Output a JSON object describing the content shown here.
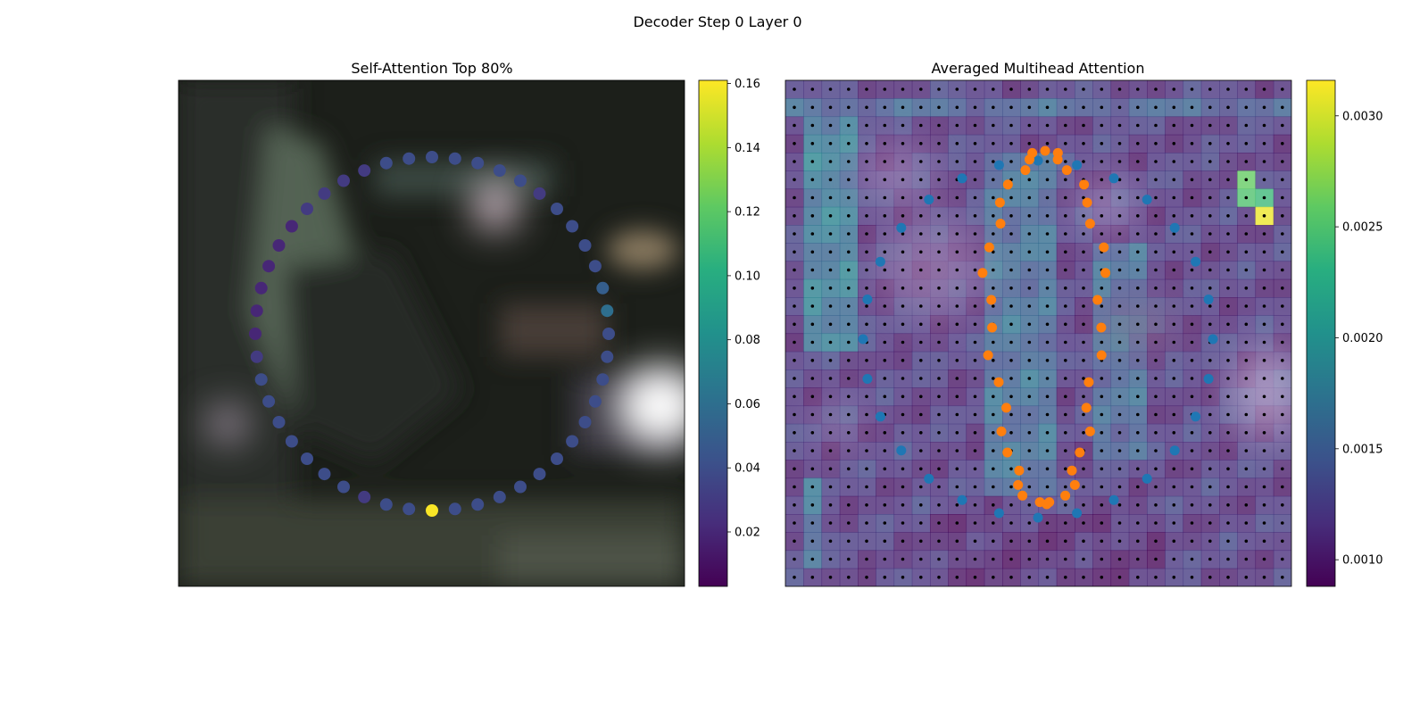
{
  "suptitle": "Decoder Step 0 Layer 0",
  "chart_data": [
    {
      "type": "scatter",
      "title": "Self-Attention Top 80%",
      "background": "blurred dark night-time street image (photo)",
      "points_layout": "48 points on a circle",
      "highlighted_point": {
        "position": "rightmost point",
        "value": 0.16,
        "color": "#fde725"
      },
      "point_values": [
        0.02,
        0.02,
        0.02,
        0.02,
        0.02,
        0.02,
        0.03,
        0.03,
        0.03,
        0.03,
        0.04,
        0.04,
        0.04,
        0.04,
        0.04,
        0.04,
        0.04,
        0.03,
        0.04,
        0.04,
        0.04,
        0.04,
        0.05,
        0.06,
        0.04,
        0.04,
        0.04,
        0.04,
        0.04,
        0.04,
        0.04,
        0.04,
        0.04,
        0.04,
        0.04,
        0.04,
        0.16,
        0.04,
        0.04,
        0.03,
        0.04,
        0.04,
        0.04,
        0.04,
        0.04,
        0.04,
        0.04,
        0.03
      ],
      "colorbar": {
        "colormap": "viridis",
        "range": [
          0.003,
          0.161
        ],
        "ticks": [
          "0.02",
          "0.04",
          "0.06",
          "0.08",
          "0.10",
          "0.12",
          "0.14",
          "0.16"
        ],
        "tick_values": [
          0.02,
          0.04,
          0.06,
          0.08,
          0.1,
          0.12,
          0.14,
          0.16
        ]
      }
    },
    {
      "type": "heatmap",
      "title": "Averaged Multihead Attention",
      "grid": {
        "rows": 28,
        "cols": 28,
        "reference_dots": "black dots at every grid cell"
      },
      "heatmap_value_range": [
        0.0009,
        0.0032
      ],
      "hot_cells": [
        {
          "row": 7,
          "col": 26,
          "value": 0.0031
        },
        {
          "row": 5,
          "col": 25,
          "value": 0.0026
        },
        {
          "row": 6,
          "col": 25,
          "value": 0.0025
        },
        {
          "row": 6,
          "col": 26,
          "value": 0.0024
        }
      ],
      "series": [
        {
          "color": "#1f77b4",
          "shape": "outer ring of points (circle, 28 points)"
        },
        {
          "color": "#ff7f0e",
          "shape": "inner loop of points (elongated vertical loop, 40 points)"
        }
      ],
      "colorbar": {
        "colormap": "viridis",
        "range": [
          0.00088,
          0.00316
        ],
        "ticks": [
          "0.0010",
          "0.0015",
          "0.0020",
          "0.0025",
          "0.0030"
        ],
        "tick_values": [
          0.001,
          0.0015,
          0.002,
          0.0025,
          0.003
        ]
      }
    }
  ]
}
